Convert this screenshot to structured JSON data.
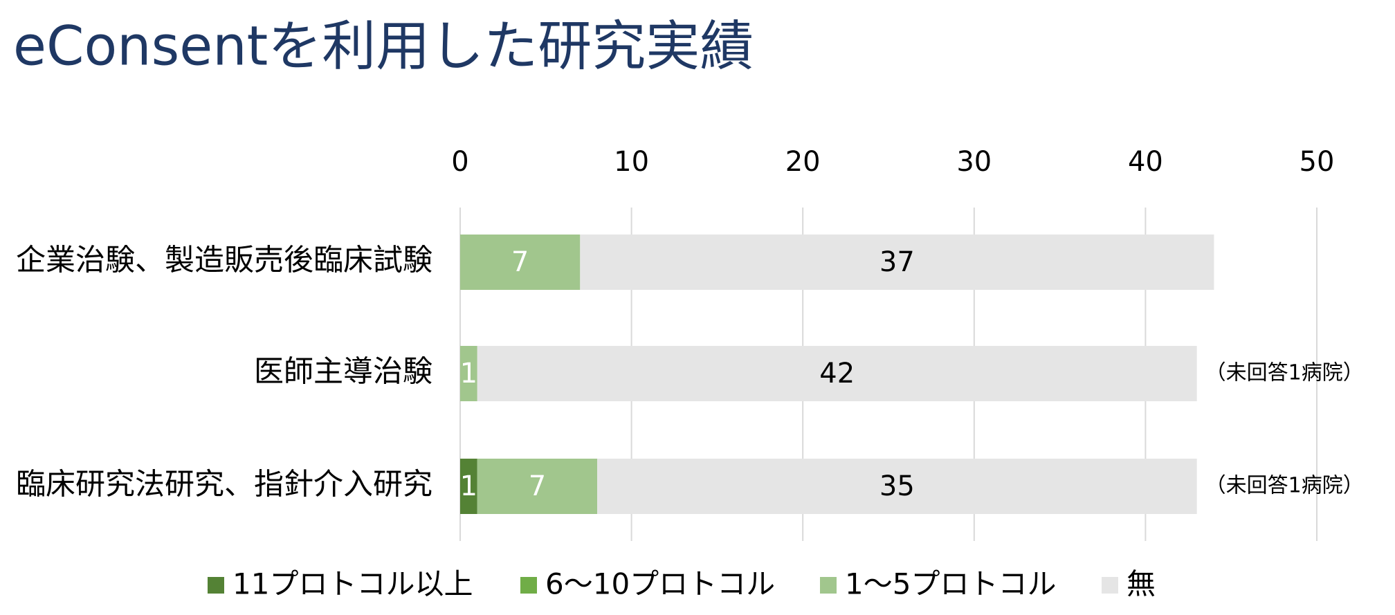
{
  "chart_data": {
    "type": "stacked-barh",
    "title": "eConsentを利用した研究実績",
    "categories": [
      "企業治験、製造販売後臨床試験",
      "医師主導治験",
      "臨床研究法研究、指針介入研究"
    ],
    "series": [
      {
        "name": "11プロトコル以上",
        "color": "#548235",
        "values": [
          0,
          0,
          1
        ]
      },
      {
        "name": "6〜10プロトコル",
        "color": "#70ad47",
        "values": [
          0,
          0,
          0
        ]
      },
      {
        "name": "1〜5プロトコル",
        "color": "#a1c68d",
        "values": [
          7,
          1,
          7
        ]
      },
      {
        "name": "無",
        "color": "#e5e5e5",
        "values": [
          37,
          42,
          35
        ]
      }
    ],
    "row_notes": [
      null,
      "（未回答1病院）",
      "（未回答1病院）"
    ],
    "xlim": [
      0,
      50
    ],
    "xticks": [
      0,
      10,
      20,
      30,
      40,
      50
    ],
    "grid": true
  }
}
